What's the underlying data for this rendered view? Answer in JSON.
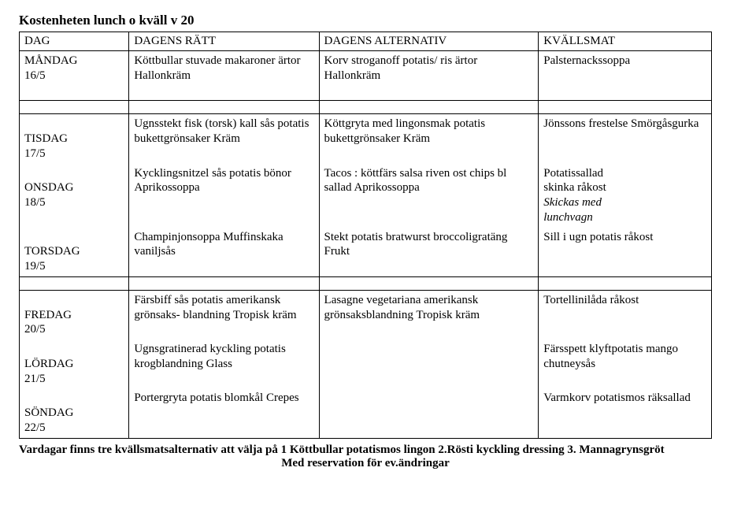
{
  "title": "Kostenheten lunch o kväll v 20",
  "columns": [
    "DAG",
    "DAGENS RÄTT",
    "DAGENS ALTERNATIV",
    "KVÄLLSMAT"
  ],
  "rows": {
    "mon": {
      "day": "MÅNDAG",
      "date": "16/5",
      "ratt": "Köttbullar stuvade makaroner ärtor Hallonkräm",
      "alt": "Korv stroganoff potatis/ ris ärtor Hallonkräm",
      "kvall": "Palsternackssoppa"
    },
    "tue": {
      "day": "TISDAG",
      "date": "17/5",
      "ratt": "Ugnsstekt fisk (torsk) kall sås potatis bukettgrönsaker Kräm",
      "alt": "Köttgryta med lingonsmak potatis bukettgrönsaker Kräm",
      "kvall": "Jönssons frestelse Smörgåsgurka"
    },
    "wed": {
      "day": "ONSDAG",
      "date": "18/5",
      "ratt": "Kycklingsnitzel sås potatis bönor Aprikossoppa",
      "alt": "Tacos : köttfärs salsa riven ost chips bl sallad Aprikossoppa",
      "kvall_l1": "Potatissallad",
      "kvall_l2": "skinka råkost",
      "kvall_l3": "Skickas med",
      "kvall_l4": "lunchvagn"
    },
    "thu": {
      "day": "TORSDAG",
      "date": "19/5",
      "ratt": "Champinjonsoppa Muffinskaka vaniljsås",
      "alt": "Stekt potatis bratwurst broccoligratäng Frukt",
      "kvall": "Sill i ugn potatis råkost"
    },
    "fri": {
      "day": "FREDAG",
      "date": "20/5",
      "ratt": "Färsbiff sås potatis amerikansk grönsaks- blandning Tropisk kräm",
      "alt": "Lasagne vegetariana amerikansk grönsaksblandning Tropisk kräm",
      "kvall": "Tortellinilåda råkost"
    },
    "sat": {
      "day": "LÖRDAG",
      "date": "21/5",
      "ratt": "Ugnsgratinerad kyckling potatis krogblandning Glass",
      "alt": "",
      "kvall": "Färsspett klyftpotatis mango chutneysås"
    },
    "sun": {
      "day": "SÖNDAG",
      "date": "22/5",
      "ratt": "Portergryta potatis blomkål Crepes",
      "alt": "",
      "kvall": "Varmkorv potatismos räksallad"
    }
  },
  "footer_line1": "Vardagar finns tre kvällsmatsalternativ att välja på 1 Köttbullar potatismos lingon 2.Rösti kyckling dressing 3. Mannagrynsgröt",
  "footer_line2": "Med reservation för ev.ändringar"
}
